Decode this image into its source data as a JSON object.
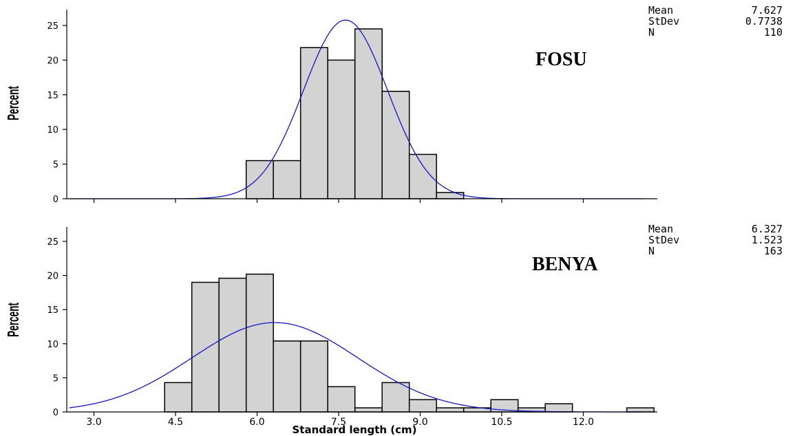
{
  "chart_data": [
    {
      "type": "bar",
      "subtype": "histogram with fitted normal curve",
      "title": "FOSU",
      "ylabel": "Percent",
      "xlabel": "",
      "xlim": [
        2.6,
        13.4
      ],
      "ylim": [
        0,
        27
      ],
      "yticks": [
        0,
        5,
        10,
        15,
        20,
        25
      ],
      "xticks": [
        3.0,
        4.5,
        6.0,
        7.5,
        9.0,
        10.5,
        12.0
      ],
      "show_xtick_labels": false,
      "bin_width": 0.5,
      "bins": [
        {
          "x0": 5.8,
          "x1": 6.3,
          "value": 5.5
        },
        {
          "x0": 6.3,
          "x1": 6.8,
          "value": 5.5
        },
        {
          "x0": 6.8,
          "x1": 7.3,
          "value": 21.8
        },
        {
          "x0": 7.3,
          "x1": 7.8,
          "value": 20.0
        },
        {
          "x0": 7.8,
          "x1": 8.3,
          "value": 24.5
        },
        {
          "x0": 8.3,
          "x1": 8.8,
          "value": 15.5
        },
        {
          "x0": 8.8,
          "x1": 9.3,
          "value": 6.4
        },
        {
          "x0": 9.3,
          "x1": 9.8,
          "value": 0.9
        }
      ],
      "fit": {
        "distribution": "normal",
        "mean": 7.627,
        "stdev": 0.7738,
        "n": 110
      },
      "stats": [
        {
          "label": "Mean",
          "value": "7.627"
        },
        {
          "label": "StDev",
          "value": "0.7738"
        },
        {
          "label": "N",
          "value": "110"
        }
      ],
      "grid": false
    },
    {
      "type": "bar",
      "subtype": "histogram with fitted normal curve",
      "title": "BENYA",
      "ylabel": "Percent",
      "xlabel": "Standard length (cm)",
      "xlim": [
        2.6,
        13.4
      ],
      "ylim": [
        0,
        27
      ],
      "yticks": [
        0,
        5,
        10,
        15,
        20,
        25
      ],
      "xticks": [
        3.0,
        4.5,
        6.0,
        7.5,
        9.0,
        10.5,
        12.0
      ],
      "xtick_labels": [
        "3.0",
        "4.5",
        "6.0",
        "7.5",
        "9.0",
        "10.5",
        "12.0"
      ],
      "show_xtick_labels": true,
      "bin_width": 0.5,
      "bins": [
        {
          "x0": 4.3,
          "x1": 4.8,
          "value": 4.3
        },
        {
          "x0": 4.8,
          "x1": 5.3,
          "value": 19.0
        },
        {
          "x0": 5.3,
          "x1": 5.8,
          "value": 19.6
        },
        {
          "x0": 5.8,
          "x1": 6.3,
          "value": 20.2
        },
        {
          "x0": 6.3,
          "x1": 6.8,
          "value": 10.4
        },
        {
          "x0": 6.8,
          "x1": 7.3,
          "value": 10.4
        },
        {
          "x0": 7.3,
          "x1": 7.8,
          "value": 3.7
        },
        {
          "x0": 7.8,
          "x1": 8.3,
          "value": 0.6
        },
        {
          "x0": 8.3,
          "x1": 8.8,
          "value": 4.3
        },
        {
          "x0": 8.8,
          "x1": 9.3,
          "value": 1.8
        },
        {
          "x0": 9.3,
          "x1": 9.8,
          "value": 0.6
        },
        {
          "x0": 9.8,
          "x1": 10.3,
          "value": 0.6
        },
        {
          "x0": 10.3,
          "x1": 10.8,
          "value": 1.8
        },
        {
          "x0": 10.8,
          "x1": 11.3,
          "value": 0.6
        },
        {
          "x0": 11.3,
          "x1": 11.8,
          "value": 1.2
        },
        {
          "x0": 12.8,
          "x1": 13.3,
          "value": 0.6
        }
      ],
      "fit": {
        "distribution": "normal",
        "mean": 6.327,
        "stdev": 1.523,
        "n": 163
      },
      "stats": [
        {
          "label": "Mean",
          "value": "6.327"
        },
        {
          "label": "StDev",
          "value": "1.523"
        },
        {
          "label": "N",
          "value": "163"
        }
      ],
      "grid": false
    }
  ]
}
